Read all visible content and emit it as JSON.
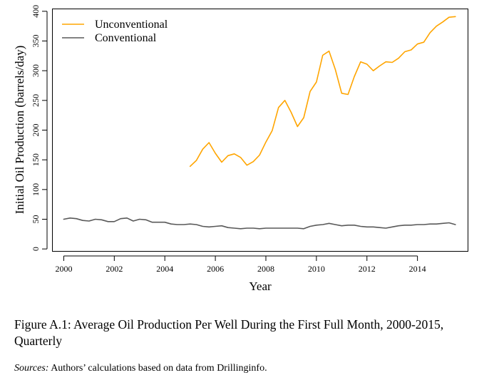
{
  "chart_data": {
    "type": "line",
    "title": "",
    "xlabel": "Year",
    "ylabel": "Initial Oil Production (barrels/day)",
    "xlim": [
      1999.55,
      2016.0
    ],
    "ylim": [
      -4,
      404
    ],
    "xticks": [
      2000,
      2002,
      2004,
      2006,
      2008,
      2010,
      2012,
      2014
    ],
    "yticks": [
      0,
      50,
      100,
      150,
      200,
      250,
      300,
      350,
      400
    ],
    "grid": false,
    "legend_position": "top-left",
    "series": [
      {
        "name": "Unconventional",
        "color": "#ffa500",
        "x": [
          2005.0,
          2005.25,
          2005.5,
          2005.75,
          2006.0,
          2006.25,
          2006.5,
          2006.75,
          2007.0,
          2007.25,
          2007.5,
          2007.75,
          2008.0,
          2008.25,
          2008.5,
          2008.75,
          2009.0,
          2009.25,
          2009.5,
          2009.75,
          2010.0,
          2010.25,
          2010.5,
          2010.75,
          2011.0,
          2011.25,
          2011.5,
          2011.75,
          2012.0,
          2012.25,
          2012.5,
          2012.75,
          2013.0,
          2013.25,
          2013.5,
          2013.75,
          2014.0,
          2014.25,
          2014.5,
          2014.75,
          2015.0,
          2015.25,
          2015.5
        ],
        "values": [
          139,
          149,
          168,
          179,
          161,
          146,
          157,
          160,
          154,
          141,
          147,
          158,
          180,
          199,
          238,
          250,
          230,
          206,
          221,
          265,
          281,
          326,
          333,
          302,
          262,
          260,
          290,
          315,
          311,
          300,
          308,
          315,
          314,
          321,
          332,
          335,
          345,
          348,
          364,
          375,
          382,
          390,
          391
        ]
      },
      {
        "name": "Conventional",
        "color": "#595959",
        "x": [
          2000.0,
          2000.25,
          2000.5,
          2000.75,
          2001.0,
          2001.25,
          2001.5,
          2001.75,
          2002.0,
          2002.25,
          2002.5,
          2002.75,
          2003.0,
          2003.25,
          2003.5,
          2003.75,
          2004.0,
          2004.25,
          2004.5,
          2004.75,
          2005.0,
          2005.25,
          2005.5,
          2005.75,
          2006.0,
          2006.25,
          2006.5,
          2006.75,
          2007.0,
          2007.25,
          2007.5,
          2007.75,
          2008.0,
          2008.25,
          2008.5,
          2008.75,
          2009.0,
          2009.25,
          2009.5,
          2009.75,
          2010.0,
          2010.25,
          2010.5,
          2010.75,
          2011.0,
          2011.25,
          2011.5,
          2011.75,
          2012.0,
          2012.25,
          2012.5,
          2012.75,
          2013.0,
          2013.25,
          2013.5,
          2013.75,
          2014.0,
          2014.25,
          2014.5,
          2014.75,
          2015.0,
          2015.25,
          2015.5
        ],
        "values": [
          50,
          52,
          51,
          48,
          47,
          50,
          49,
          46,
          46,
          51,
          52,
          47,
          50,
          49,
          45,
          45,
          45,
          42,
          41,
          41,
          42,
          41,
          38,
          37,
          38,
          39,
          36,
          35,
          34,
          35,
          35,
          34,
          35,
          35,
          35,
          35,
          35,
          35,
          34,
          38,
          40,
          41,
          43,
          41,
          39,
          40,
          40,
          38,
          37,
          37,
          36,
          35,
          37,
          39,
          40,
          40,
          41,
          41,
          42,
          42,
          43,
          44,
          41
        ]
      }
    ]
  },
  "caption": {
    "text": "Figure A.1: Average Oil Production Per Well During the First Full Month, 2000-2015, Quarterly",
    "sources_label": "Sources:",
    "sources_text": " Authors’ calculations based on data from Drillinginfo."
  }
}
